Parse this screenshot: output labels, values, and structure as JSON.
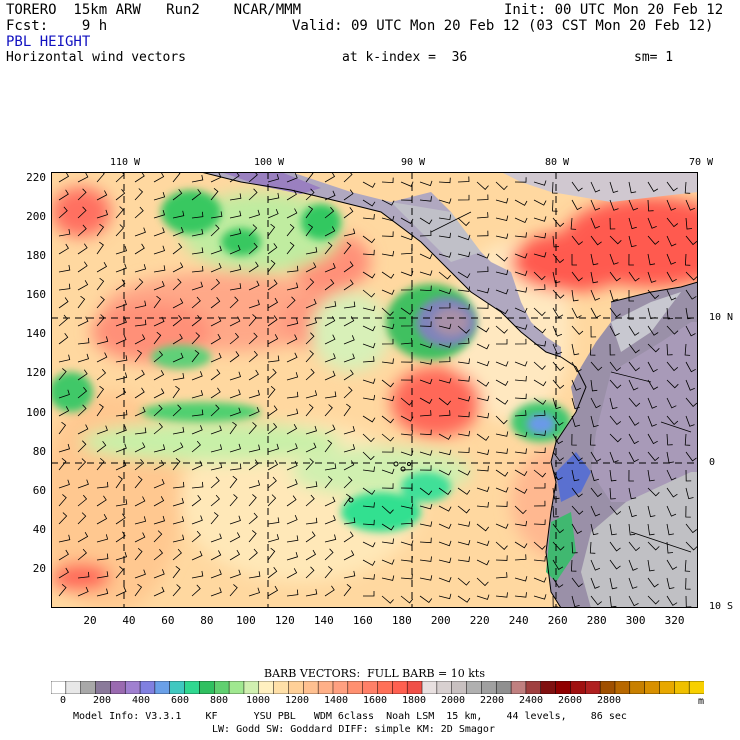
{
  "header": {
    "model": "TORERO  15km ARW   Run2    NCAR/MMM",
    "init": "Init: 00 UTC Mon 20 Feb 12",
    "fcst": "Fcst:    9 h",
    "valid": "Valid: 09 UTC Mon 20 Feb 12 (03 CST Mon 20 Feb 12)",
    "field": "PBL HEIGHT",
    "vectors": "Horizontal wind vectors",
    "kindex": "at k-index =  36",
    "sm": "sm= 1"
  },
  "map": {
    "lon_labels": [
      "110 W",
      "100 W",
      "90 W",
      "80 W",
      "70 W"
    ],
    "lat_labels": [
      "10 N",
      "0",
      "10 S"
    ],
    "y_ticks": [
      "220",
      "200",
      "180",
      "160",
      "140",
      "120",
      "100",
      "80",
      "60",
      "40",
      "20"
    ],
    "x_ticks": [
      "20",
      "40",
      "60",
      "80",
      "100",
      "120",
      "140",
      "160",
      "180",
      "200",
      "220",
      "240",
      "260",
      "280",
      "300",
      "320"
    ]
  },
  "colorbar": {
    "title": "BARB VECTORS:  FULL BARB = 10 kts",
    "labels": [
      "0",
      "200",
      "400",
      "600",
      "800",
      "1000",
      "1200",
      "1400",
      "1600",
      "1800",
      "2000",
      "2200",
      "2400",
      "2600",
      "2800"
    ],
    "unit": "m",
    "colors": [
      "#ffffff",
      "#e8e8e8",
      "#a8a8a8",
      "#8a7a9a",
      "#9a6ab0",
      "#a080d0",
      "#8080e0",
      "#6aa0e8",
      "#40c8c0",
      "#30d890",
      "#30c060",
      "#60d070",
      "#a0e890",
      "#d0f0b0",
      "#fff0c0",
      "#ffe0a8",
      "#ffd098",
      "#ffc090",
      "#ffb088",
      "#ffa080",
      "#ff9070",
      "#ff8068",
      "#ff7058",
      "#ff6050",
      "#f05048",
      "#e8e0e0",
      "#d8d0d0",
      "#c8c0c0",
      "#b0b0b0",
      "#a0a0a0",
      "#909090",
      "#c08080",
      "#a04040",
      "#801010",
      "#900000",
      "#a01010",
      "#b02020",
      "#a05000",
      "#b86800",
      "#c88000",
      "#d89000",
      "#e8a800",
      "#f0c000",
      "#f8d000"
    ]
  },
  "footer": {
    "line1": "Model Info: V3.3.1    KF      YSU PBL   WDM 6class  Noah LSM  15 km,    44 levels,    86 sec",
    "line2": "LW: Godd SW: Goddard DIFF: simple KM: 2D Smagor"
  }
}
